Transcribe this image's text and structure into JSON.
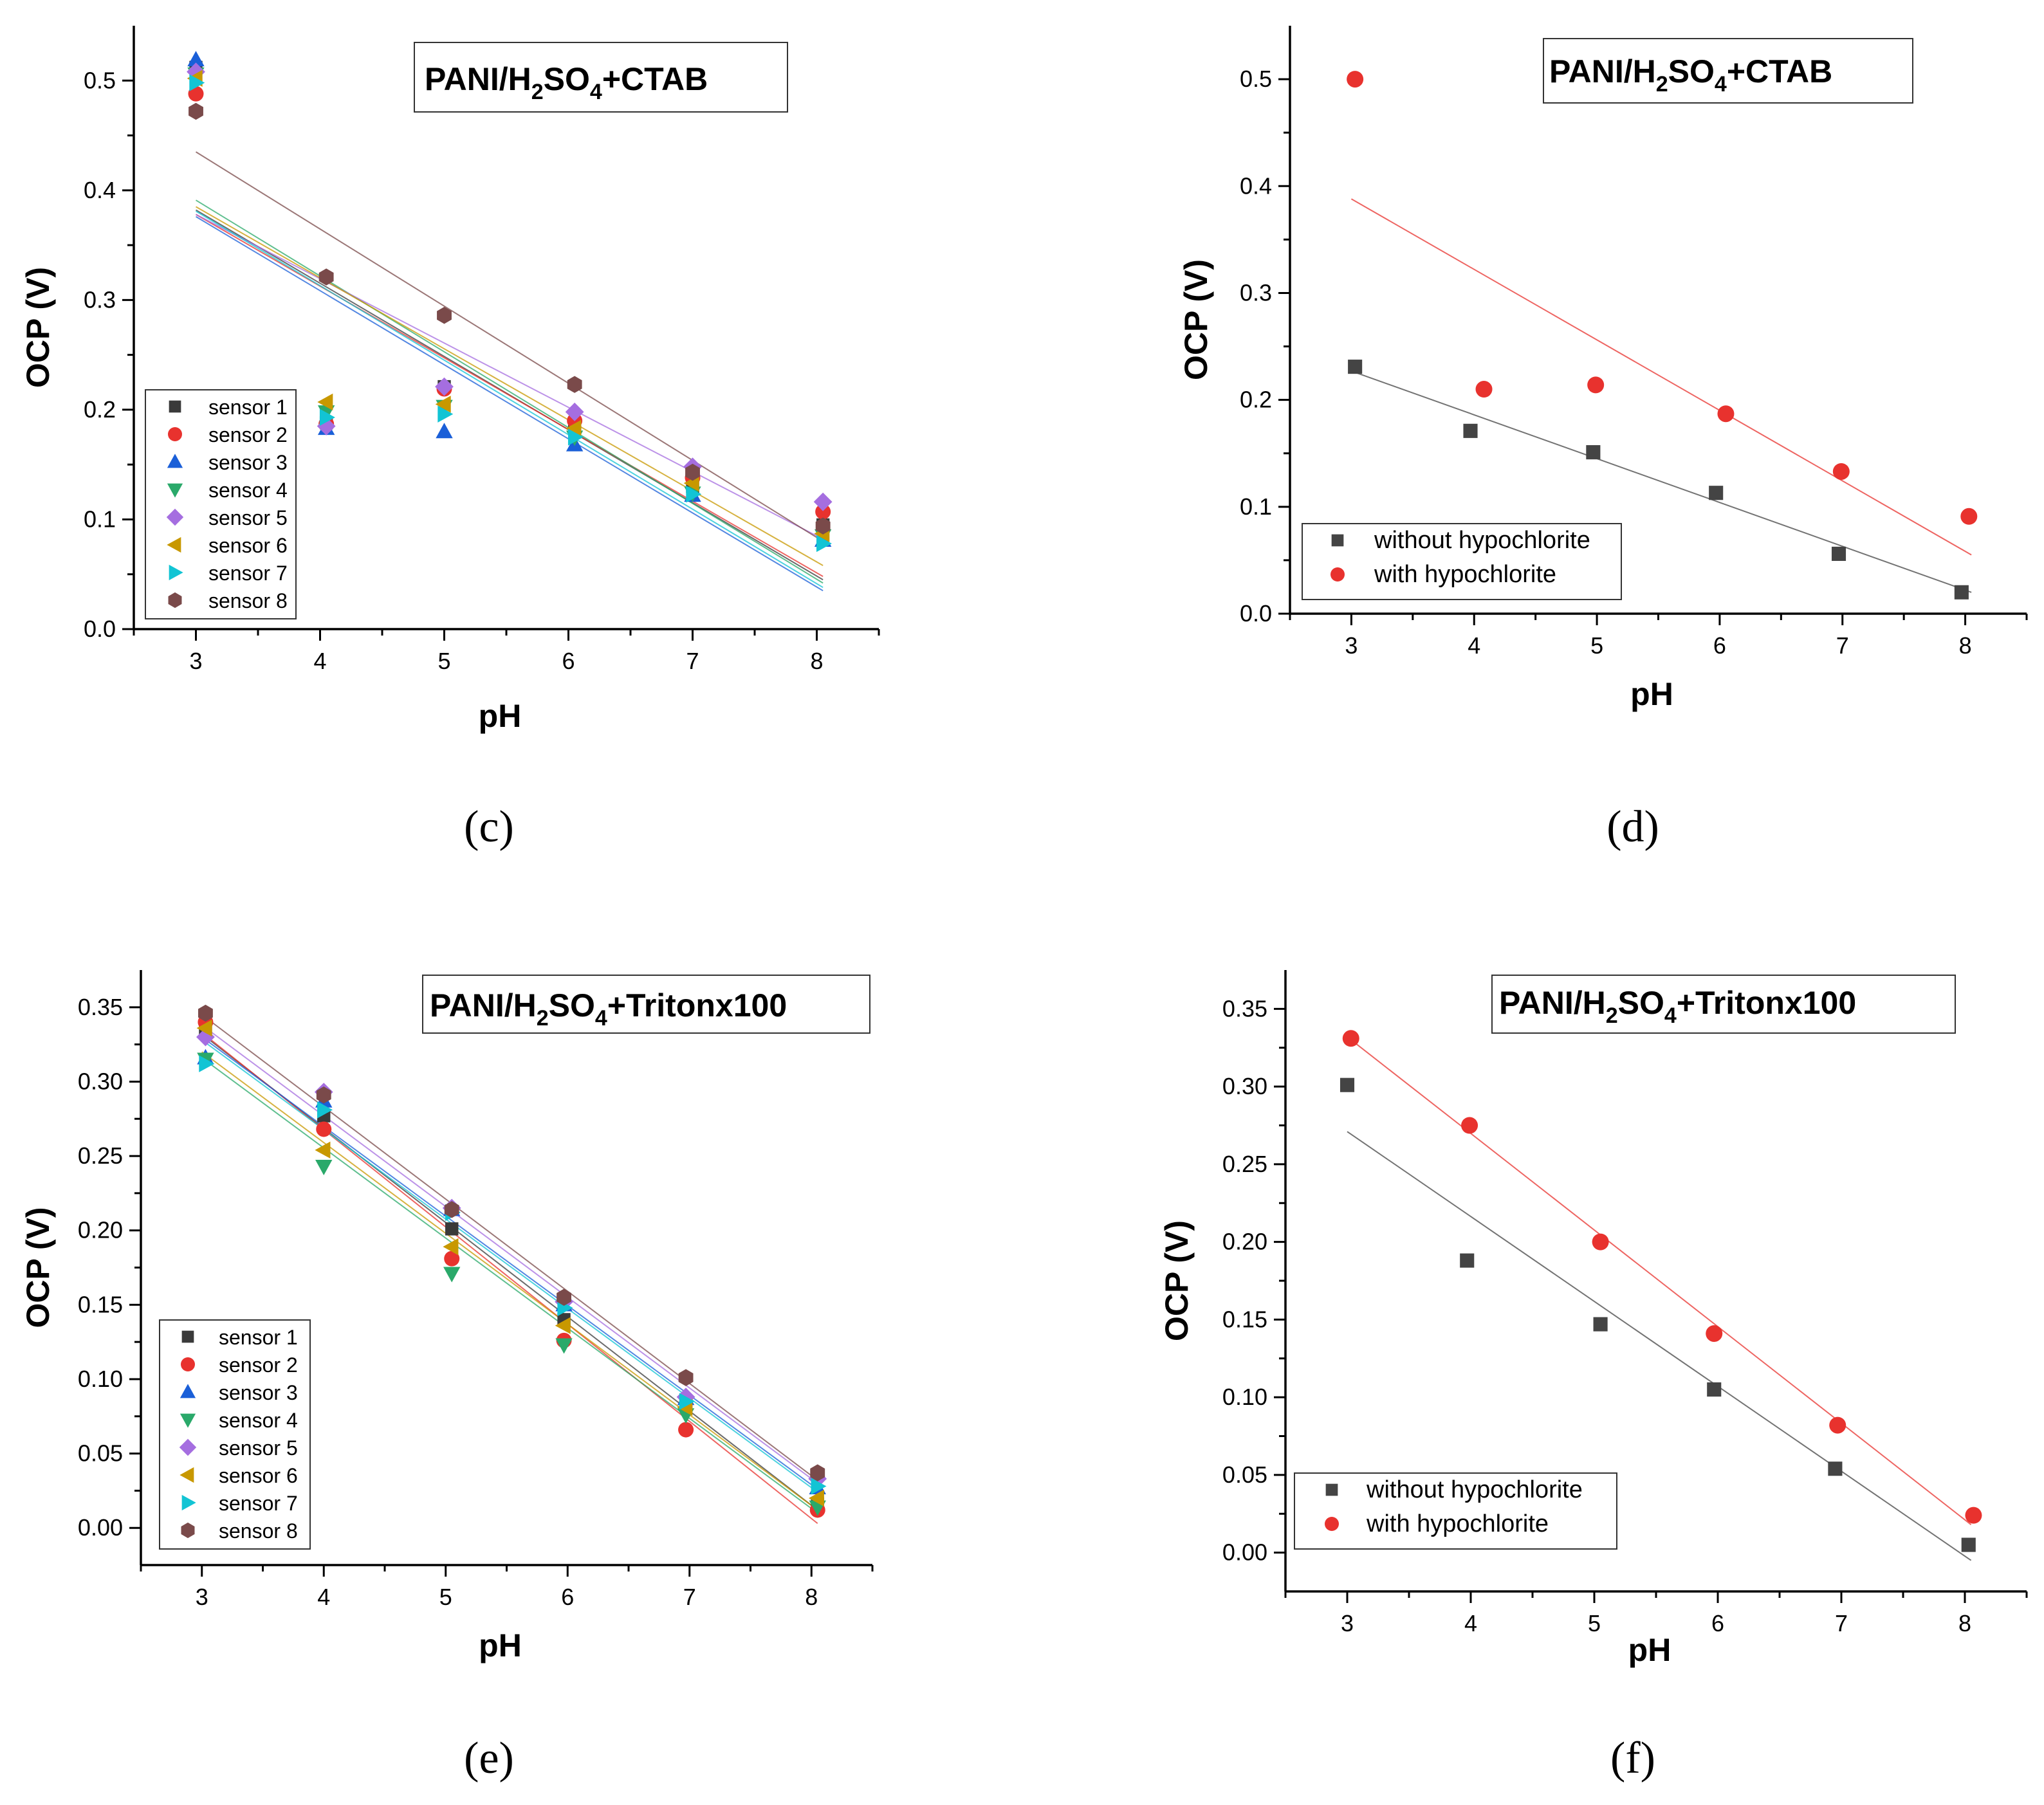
{
  "chart_data": [
    {
      "panel": "(c)",
      "type": "scatter",
      "title": [
        "PANI/H",
        "2",
        "SO",
        "4",
        "+CTAB"
      ],
      "xlabel": "pH",
      "ylabel": "OCP (V)",
      "xlim": [
        2.5,
        8.5
      ],
      "ylim": [
        0,
        0.55
      ],
      "xticks": [
        "3",
        "4",
        "5",
        "6",
        "7",
        "8"
      ],
      "yticks": [
        "0.0",
        "0.1",
        "0.2",
        "0.3",
        "0.4",
        "0.5"
      ],
      "legend_position": "bottom-left",
      "x": [
        3.0,
        4.05,
        5.0,
        6.05,
        7.0,
        8.05
      ],
      "series": [
        {
          "name": "sensor 1",
          "color": "#3a3a3a",
          "marker": "square",
          "values": [
            0.512,
            0.188,
            0.221,
            0.185,
            0.13,
            0.095
          ],
          "fit": [
            0.382,
            0.045
          ]
        },
        {
          "name": "sensor 2",
          "color": "#e8322e",
          "marker": "circle",
          "values": [
            0.488,
            0.187,
            0.219,
            0.19,
            0.138,
            0.107
          ],
          "fit": [
            0.378,
            0.048
          ]
        },
        {
          "name": "sensor 3",
          "color": "#1a5fd8",
          "marker": "triangle-up",
          "values": [
            0.519,
            0.183,
            0.18,
            0.168,
            0.122,
            0.081
          ],
          "fit": [
            0.376,
            0.035
          ]
        },
        {
          "name": "sensor 4",
          "color": "#2aa96a",
          "marker": "triangle-down",
          "values": [
            0.506,
            0.198,
            0.203,
            0.175,
            0.124,
            0.085
          ],
          "fit": [
            0.391,
            0.042
          ]
        },
        {
          "name": "sensor 5",
          "color": "#a56ee0",
          "marker": "diamond",
          "values": [
            0.508,
            0.185,
            0.221,
            0.198,
            0.148,
            0.116
          ],
          "fit": [
            0.378,
            0.082
          ]
        },
        {
          "name": "sensor 6",
          "color": "#c89800",
          "marker": "triangle-left",
          "values": [
            0.502,
            0.207,
            0.205,
            0.183,
            0.133,
            0.087
          ],
          "fit": [
            0.385,
            0.058
          ]
        },
        {
          "name": "sensor 7",
          "color": "#12c4d4",
          "marker": "triangle-right",
          "values": [
            0.498,
            0.193,
            0.196,
            0.175,
            0.123,
            0.078
          ],
          "fit": [
            0.381,
            0.038
          ]
        },
        {
          "name": "sensor 8",
          "color": "#7a4a4a",
          "marker": "hexagon",
          "values": [
            0.472,
            0.321,
            0.286,
            0.223,
            0.143,
            0.094
          ],
          "fit": [
            0.435,
            0.08
          ]
        }
      ]
    },
    {
      "panel": "(d)",
      "type": "scatter",
      "title": [
        "PANI/H",
        "2",
        "SO",
        "4",
        "+CTAB"
      ],
      "xlabel": "pH",
      "ylabel": "OCP (V)",
      "xlim": [
        2.5,
        8.5
      ],
      "ylim": [
        0,
        0.55
      ],
      "xticks": [
        "3",
        "4",
        "5",
        "6",
        "7",
        "8"
      ],
      "yticks": [
        "0.0",
        "0.1",
        "0.2",
        "0.3",
        "0.4",
        "0.5"
      ],
      "legend_position": "bottom-left",
      "series": [
        {
          "name": "without hypochlorite",
          "color": "#444444",
          "marker": "square",
          "x": [
            3.03,
            3.97,
            4.97,
            5.97,
            6.97,
            7.97
          ],
          "values": [
            0.231,
            0.171,
            0.151,
            0.113,
            0.056,
            0.02
          ],
          "fit": [
            0.227,
            0.02
          ]
        },
        {
          "name": "with hypochlorite",
          "color": "#e8322e",
          "marker": "circle",
          "x": [
            3.03,
            4.08,
            4.99,
            6.05,
            6.99,
            8.03
          ],
          "values": [
            0.5,
            0.21,
            0.214,
            0.187,
            0.133,
            0.091
          ],
          "fit": [
            0.388,
            0.055
          ]
        }
      ]
    },
    {
      "panel": "(e)",
      "type": "scatter",
      "title": [
        "PANI/H",
        "2",
        "SO",
        "4",
        "+Tritonx100"
      ],
      "xlabel": "pH",
      "ylabel": "OCP (V)",
      "xlim": [
        2.5,
        8.5
      ],
      "ylim": [
        -0.025,
        0.375
      ],
      "xticks": [
        "3",
        "4",
        "5",
        "6",
        "7",
        "8"
      ],
      "yticks": [
        "0.00",
        "0.05",
        "0.10",
        "0.15",
        "0.20",
        "0.25",
        "0.30",
        "0.35"
      ],
      "legend_position": "bottom-left",
      "x": [
        3.03,
        4.0,
        5.05,
        5.97,
        6.97,
        8.05
      ],
      "series": [
        {
          "name": "sensor 1",
          "color": "#3a3a3a",
          "marker": "square",
          "values": [
            0.333,
            0.277,
            0.201,
            0.14,
            0.083,
            0.016
          ],
          "fit": [
            0.332,
            0.012
          ]
        },
        {
          "name": "sensor 2",
          "color": "#e8322e",
          "marker": "circle",
          "values": [
            0.34,
            0.268,
            0.181,
            0.126,
            0.066,
            0.012
          ],
          "fit": [
            0.333,
            0.003
          ]
        },
        {
          "name": "sensor 3",
          "color": "#1a5fd8",
          "marker": "triangle-up",
          "values": [
            0.316,
            0.287,
            0.214,
            0.15,
            0.087,
            0.027
          ],
          "fit": [
            0.33,
            0.026
          ]
        },
        {
          "name": "sensor 4",
          "color": "#2aa96a",
          "marker": "triangle-down",
          "values": [
            0.315,
            0.243,
            0.171,
            0.123,
            0.076,
            0.014
          ],
          "fit": [
            0.316,
            0.01
          ]
        },
        {
          "name": "sensor 5",
          "color": "#a56ee0",
          "marker": "diamond",
          "values": [
            0.33,
            0.293,
            0.215,
            0.152,
            0.088,
            0.033
          ],
          "fit": [
            0.338,
            0.03
          ]
        },
        {
          "name": "sensor 6",
          "color": "#c89800",
          "marker": "triangle-left",
          "values": [
            0.336,
            0.254,
            0.189,
            0.136,
            0.081,
            0.02
          ],
          "fit": [
            0.32,
            0.012
          ]
        },
        {
          "name": "sensor 7",
          "color": "#12c4d4",
          "marker": "triangle-right",
          "values": [
            0.312,
            0.281,
            0.212,
            0.148,
            0.085,
            0.028
          ],
          "fit": [
            0.328,
            0.024
          ]
        },
        {
          "name": "sensor 8",
          "color": "#7a4a4a",
          "marker": "hexagon",
          "values": [
            0.346,
            0.291,
            0.214,
            0.155,
            0.101,
            0.037
          ],
          "fit": [
            0.345,
            0.032
          ]
        }
      ]
    },
    {
      "panel": "(f)",
      "type": "scatter",
      "title": [
        "PANI/H",
        "2",
        "SO",
        "4",
        "+Tritonx100"
      ],
      "xlabel": "pH",
      "ylabel": "OCP (V)",
      "xlim": [
        2.5,
        8.5
      ],
      "ylim": [
        -0.025,
        0.375
      ],
      "xticks": [
        "3",
        "4",
        "5",
        "6",
        "7",
        "8"
      ],
      "yticks": [
        "0.00",
        "0.05",
        "0.10",
        "0.15",
        "0.20",
        "0.25",
        "0.30",
        "0.35"
      ],
      "legend_position": "bottom-left",
      "series": [
        {
          "name": "without hypochlorite",
          "color": "#444444",
          "marker": "square",
          "x": [
            3.0,
            3.97,
            5.05,
            5.97,
            6.95,
            8.03
          ],
          "values": [
            0.301,
            0.188,
            0.147,
            0.105,
            0.054,
            0.005
          ],
          "fit": [
            0.271,
            -0.005
          ]
        },
        {
          "name": "with hypochlorite",
          "color": "#e8322e",
          "marker": "circle",
          "x": [
            3.03,
            3.99,
            5.05,
            5.97,
            6.97,
            8.07
          ],
          "values": [
            0.331,
            0.275,
            0.2,
            0.141,
            0.082,
            0.024
          ],
          "fit": [
            0.332,
            0.018
          ]
        }
      ]
    }
  ],
  "panel_labels": {
    "c": "(c)",
    "d": "(d)",
    "e": "(e)",
    "f": "(f)"
  }
}
